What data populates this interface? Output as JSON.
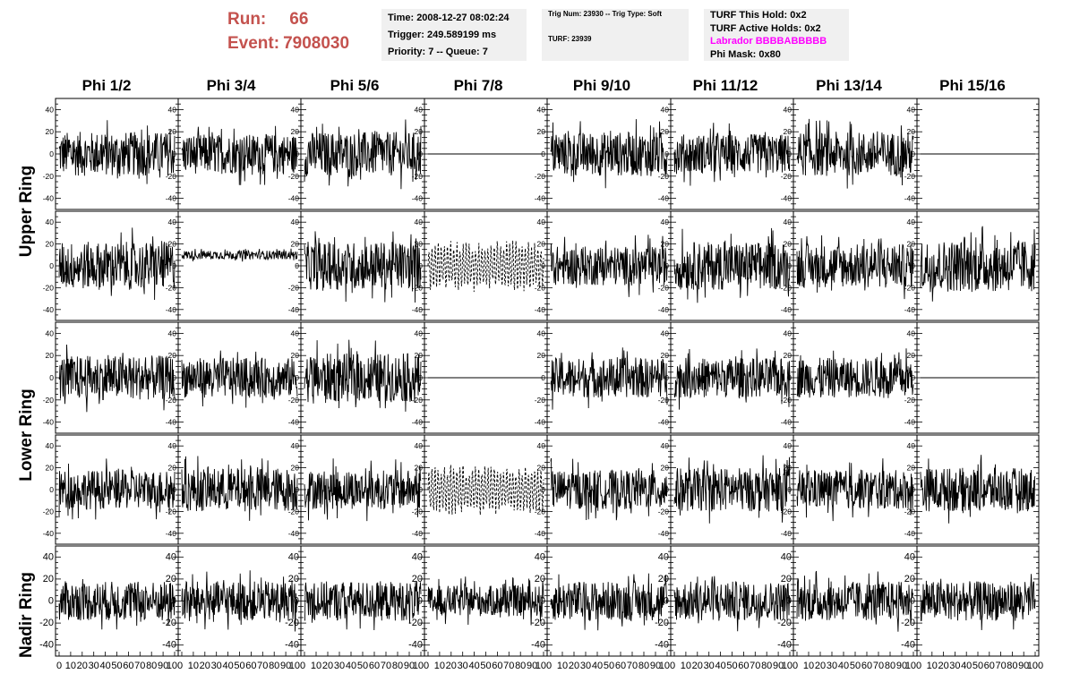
{
  "header": {
    "run_label": "Run:",
    "run_value": "66",
    "event_label": "Event:",
    "event_value": "7908030"
  },
  "info1": {
    "time": "Time: 2008-12-27 08:02:24",
    "trigger": "Trigger: 249.589199 ms",
    "priority": "Priority: 7 -- Queue: 7"
  },
  "info2": {
    "trig": "Trig Num: 23930 -- Trig Type: Soft",
    "turf": "TURF: 23939"
  },
  "info3": {
    "hold": "TURF This Hold: 0x2",
    "active": "TURF Active Holds: 0x2",
    "labrador": "Labrador BBBBABBBBB",
    "phimask": "Phi Mask: 0x80"
  },
  "columns": [
    "Phi 1/2",
    "Phi 3/4",
    "Phi 5/6",
    "Phi 7/8",
    "Phi 9/10",
    "Phi 11/12",
    "Phi 13/14",
    "Phi 15/16"
  ],
  "rings": [
    "Upper Ring",
    "Lower Ring",
    "Nadir Ring"
  ],
  "colors": {
    "run_text": "#c4524e",
    "labrador_text": "#ff00ff",
    "info_bg": "#f0f0f0"
  },
  "chart_data": {
    "type": "line",
    "layout": "grid of 5 rows x 8 columns of waveform panels",
    "rows": [
      "Upper Ring (top)",
      "Upper Ring (bottom)",
      "Lower Ring (top)",
      "Lower Ring (bottom)",
      "Nadir Ring"
    ],
    "columns": [
      "Phi 1/2",
      "Phi 3/4",
      "Phi 5/6",
      "Phi 7/8",
      "Phi 9/10",
      "Phi 11/12",
      "Phi 13/14",
      "Phi 15/16"
    ],
    "xlim": [
      0,
      100
    ],
    "ylim": [
      -50,
      50
    ],
    "y_ticks": [
      -40,
      -20,
      0,
      20,
      40
    ],
    "x_ticks": [
      0,
      10,
      20,
      30,
      40,
      50,
      60,
      70,
      80,
      90,
      100
    ],
    "x_tick_labels": [
      "0",
      "10",
      "20",
      "30",
      "40",
      "50",
      "60",
      "70",
      "80",
      "90",
      "100"
    ],
    "approx_amplitude": [
      [
        20,
        18,
        20,
        0,
        20,
        18,
        20,
        0
      ],
      [
        22,
        4,
        22,
        22,
        18,
        22,
        20,
        24
      ],
      [
        20,
        18,
        22,
        0,
        18,
        18,
        18,
        0
      ],
      [
        18,
        20,
        18,
        22,
        18,
        20,
        18,
        20
      ],
      [
        18,
        18,
        18,
        14,
        18,
        18,
        18,
        18
      ]
    ],
    "flat_zero_panels": [
      [
        0,
        3
      ],
      [
        0,
        7
      ],
      [
        2,
        3
      ],
      [
        2,
        7
      ]
    ],
    "dashed_panels": [
      [
        1,
        3
      ],
      [
        3,
        3
      ]
    ],
    "offset_panels": [
      {
        "row": 1,
        "col": 1,
        "offset": 10
      }
    ]
  }
}
